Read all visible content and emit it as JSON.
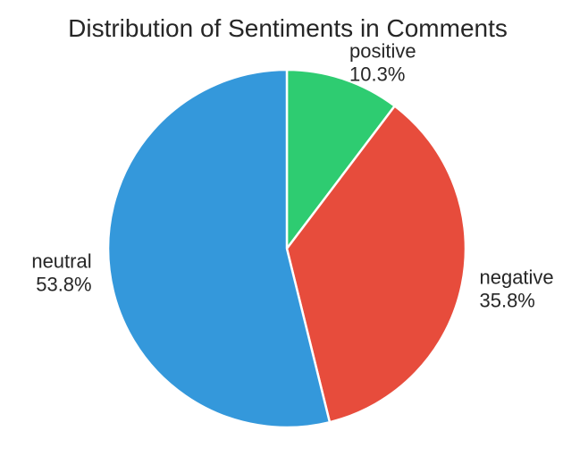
{
  "chart_data": {
    "type": "pie",
    "title": "Distribution of Sentiments in Comments",
    "start_angle_deg": 90,
    "direction": "clockwise",
    "slices": [
      {
        "label": "positive",
        "value": 10.3,
        "pct_label": "10.3%",
        "color": "#2ecc71"
      },
      {
        "label": "negative",
        "value": 35.8,
        "pct_label": "35.8%",
        "color": "#e74c3c"
      },
      {
        "label": "neutral",
        "value": 53.8,
        "pct_label": "53.8%",
        "color": "#3498db"
      }
    ]
  }
}
